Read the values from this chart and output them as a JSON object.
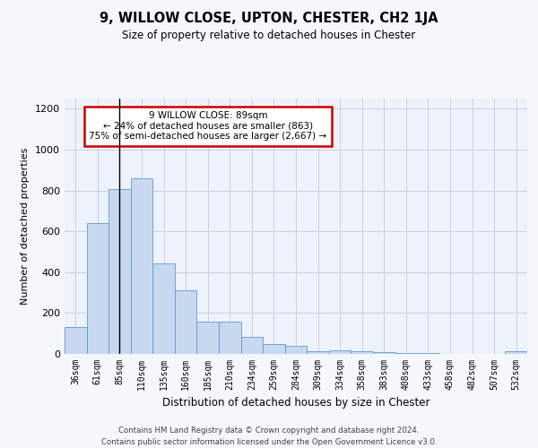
{
  "title1": "9, WILLOW CLOSE, UPTON, CHESTER, CH2 1JA",
  "title2": "Size of property relative to detached houses in Chester",
  "xlabel": "Distribution of detached houses by size in Chester",
  "ylabel": "Number of detached properties",
  "categories": [
    "36sqm",
    "61sqm",
    "85sqm",
    "110sqm",
    "135sqm",
    "160sqm",
    "185sqm",
    "210sqm",
    "234sqm",
    "259sqm",
    "284sqm",
    "309sqm",
    "334sqm",
    "358sqm",
    "383sqm",
    "408sqm",
    "433sqm",
    "458sqm",
    "482sqm",
    "507sqm",
    "532sqm"
  ],
  "values": [
    130,
    640,
    805,
    860,
    445,
    310,
    160,
    160,
    85,
    50,
    40,
    13,
    17,
    15,
    10,
    5,
    3,
    2,
    1,
    0,
    12
  ],
  "bar_color": "#c8d9ef",
  "bar_edge_color": "#5b9bd5",
  "line_color": "#000000",
  "annotation_box_edge": "#cc0000",
  "annotation_text": "9 WILLOW CLOSE: 89sqm\n← 24% of detached houses are smaller (863)\n75% of semi-detached houses are larger (2,667) →",
  "vline_x": 2.0,
  "ylim": [
    0,
    1250
  ],
  "yticks": [
    0,
    200,
    400,
    600,
    800,
    1000,
    1200
  ],
  "footnote": "Contains HM Land Registry data © Crown copyright and database right 2024.\nContains public sector information licensed under the Open Government Licence v3.0.",
  "bg_color": "#eef2fa",
  "grid_color": "#c8d0e0",
  "fig_bg_color": "#f5f7fc"
}
